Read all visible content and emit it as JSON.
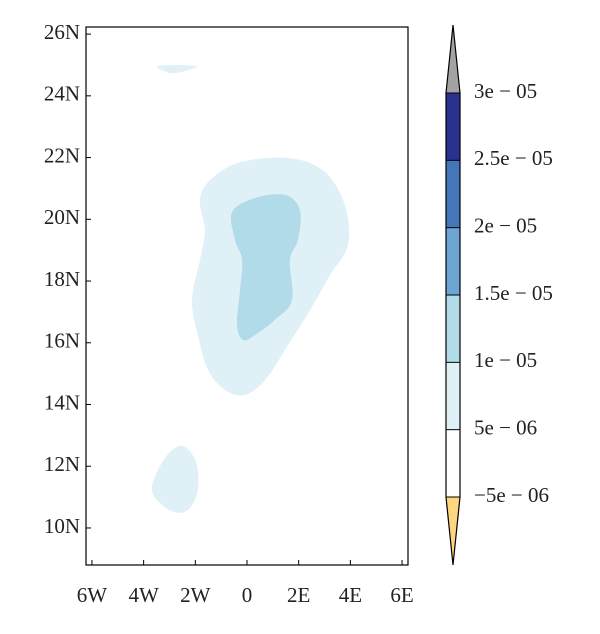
{
  "chart_data": {
    "type": "contourf",
    "xlim": [
      -6.23,
      6.23
    ],
    "ylim": [
      8.8,
      26.23
    ],
    "xticks": [
      {
        "value": -6,
        "label": "6W"
      },
      {
        "value": -4,
        "label": "4W"
      },
      {
        "value": -2,
        "label": "2W"
      },
      0,
      {
        "value": 2,
        "label": "2E"
      },
      {
        "value": 4,
        "label": "4E"
      },
      {
        "value": 6,
        "label": "6E"
      }
    ],
    "yticks": [
      {
        "value": 10,
        "label": "10N"
      },
      {
        "value": 12,
        "label": "12N"
      },
      {
        "value": 14,
        "label": "14N"
      },
      {
        "value": 16,
        "label": "16N"
      },
      {
        "value": 18,
        "label": "18N"
      },
      {
        "value": 20,
        "label": "20N"
      },
      {
        "value": 22,
        "label": "22N"
      },
      {
        "value": 24,
        "label": "24N"
      },
      {
        "value": 26,
        "label": "26N"
      }
    ],
    "contours": [
      {
        "color": "#dff0f6",
        "lon": [
          -1.43,
          -0.27,
          1.66,
          3.02,
          3.79,
          3.91,
          3.21,
          2.44,
          1.47,
          0.7,
          -0.08,
          -0.85,
          -1.51,
          -1.9,
          -2.13,
          -1.82,
          -1.63,
          -1.82
        ],
        "lat": [
          21.27,
          21.85,
          21.98,
          21.53,
          20.46,
          19.17,
          18.19,
          17.06,
          15.77,
          14.79,
          14.31,
          14.47,
          15.12,
          16.25,
          17.38,
          18.68,
          19.65,
          20.62
        ]
      },
      {
        "color": "#b2dbe9",
        "lon": [
          -0.58,
          0.31,
          1.47,
          2.05,
          1.97,
          1.66,
          1.74,
          1.08,
          0.31,
          -0.15,
          -0.39,
          -0.27,
          -0.19,
          -0.46
        ],
        "lat": [
          20.23,
          20.69,
          20.79,
          20.3,
          19.33,
          18.68,
          17.38,
          16.74,
          16.25,
          16.09,
          16.57,
          17.71,
          18.68,
          19.33
        ]
      },
      {
        "color": "#dff0f6",
        "lon": [
          -3.68,
          -3.17,
          -2.52,
          -1.97,
          -1.9,
          -2.21,
          -2.67,
          -3.29
        ],
        "lat": [
          11.3,
          12.27,
          12.66,
          12.14,
          11.23,
          10.65,
          10.49,
          10.74
        ]
      },
      {
        "color": "#dff0f6",
        "lon": [
          -3.45,
          -1.97,
          -2.4,
          -2.98
        ],
        "lat": [
          24.97,
          24.97,
          24.8,
          24.74
        ]
      }
    ],
    "colorbar": {
      "ticks": [
        {
          "value": -5e-06,
          "label": "−5e − 06"
        },
        {
          "value": 5e-06,
          "label": "5e − 06"
        },
        {
          "value": 1e-05,
          "label": "1e − 05"
        },
        {
          "value": 1.5e-05,
          "label": "1.5e − 05"
        },
        {
          "value": 2e-05,
          "label": "2e − 05"
        },
        {
          "value": 2.5e-05,
          "label": "2.5e − 05"
        },
        {
          "value": 3e-05,
          "label": "3e − 05"
        }
      ],
      "colors": [
        "#ffffff",
        "#dff0f6",
        "#b2dbe9",
        "#6ea6d3",
        "#4377b9",
        "#2b3190"
      ],
      "extend_colors": [
        "#fdd67f",
        "#a3a3a3"
      ]
    }
  }
}
